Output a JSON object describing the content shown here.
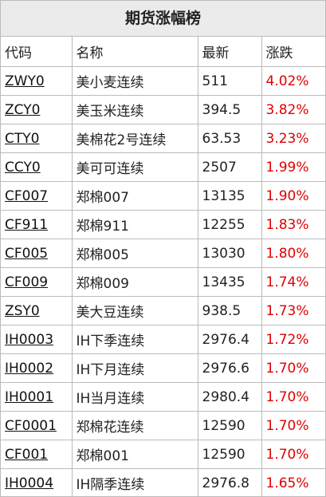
{
  "title": "期货涨幅榜",
  "table": {
    "headers": [
      "代码",
      "名称",
      "最新",
      "涨跌"
    ],
    "rows": [
      [
        "ZWY0",
        "美小麦连续",
        "511",
        "4.02%"
      ],
      [
        "ZCY0",
        "美玉米连续",
        "394.5",
        "3.82%"
      ],
      [
        "CTY0",
        "美棉花2号连续",
        "63.53",
        "3.23%"
      ],
      [
        "CCY0",
        "美可可连续",
        "2507",
        "1.99%"
      ],
      [
        "CF007",
        "郑棉007",
        "13135",
        "1.90%"
      ],
      [
        "CF911",
        "郑棉911",
        "12255",
        "1.83%"
      ],
      [
        "CF005",
        "郑棉005",
        "13030",
        "1.80%"
      ],
      [
        "CF009",
        "郑棉009",
        "13435",
        "1.74%"
      ],
      [
        "ZSY0",
        "美大豆连续",
        "938.5",
        "1.73%"
      ],
      [
        "IH0003",
        "IH下季连续",
        "2976.4",
        "1.72%"
      ],
      [
        "IH0002",
        "IH下月连续",
        "2976.6",
        "1.70%"
      ],
      [
        "IH0001",
        "IH当月连续",
        "2980.4",
        "1.70%"
      ],
      [
        "CF0001",
        "郑棉花连续",
        "12590",
        "1.70%"
      ],
      [
        "CF001",
        "郑棉001",
        "12590",
        "1.70%"
      ],
      [
        "IH0004",
        "IH隔季连续",
        "2976.8",
        "1.65%"
      ]
    ]
  }
}
